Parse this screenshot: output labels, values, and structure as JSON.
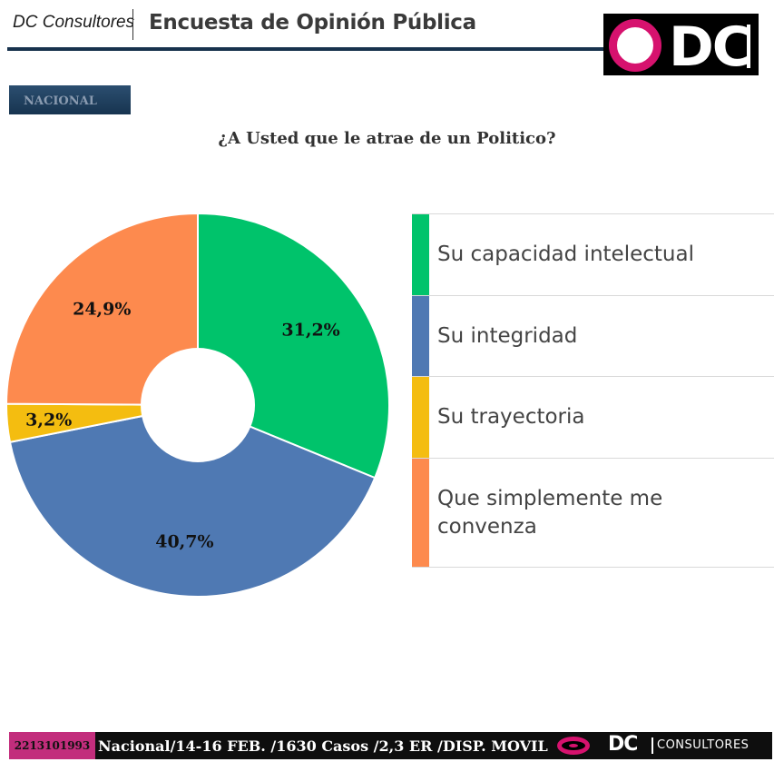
{
  "header": {
    "brand": "DC Consultores",
    "title": "Encuesta de Opinión Pública",
    "logo_text": "DC"
  },
  "badge": "NACIONAL",
  "question": "¿A Usted que le atrae de un Politico?",
  "chart_data": {
    "type": "pie",
    "variant": "donut",
    "categories": [
      "Su capacidad intelectual",
      "Su integridad",
      "Su trayectoria",
      "Que simplemente me convenza"
    ],
    "values": [
      31.2,
      40.7,
      3.2,
      24.9
    ],
    "value_labels": [
      "31,2%",
      "40,7%",
      "3,2%",
      "24,9%"
    ],
    "colors": [
      "#00c36b",
      "#4f79b3",
      "#f4bd10",
      "#fd8a4e"
    ],
    "legend_placement": "right"
  },
  "footer": {
    "phone": "2213101993",
    "info": "Nacional/14-16 FEB. /1630 Casos /2,3    ER /DISP. MOVIL",
    "logo_dc": "DC",
    "logo_consultores": "CONSULTORES"
  }
}
